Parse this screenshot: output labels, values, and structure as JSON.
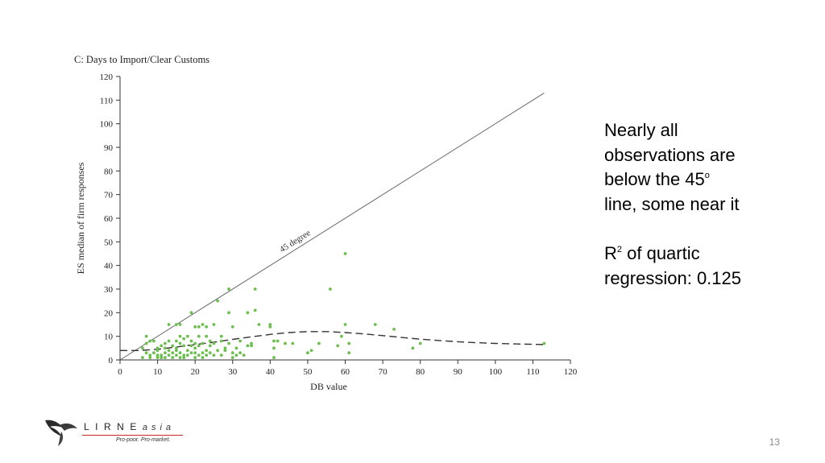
{
  "chart_data": {
    "type": "scatter",
    "title": "C: Days to Import/Clear Customs",
    "xlabel": "DB value",
    "ylabel": "ES median of firm responses",
    "xlim": [
      0,
      120
    ],
    "ylim": [
      0,
      120
    ],
    "x_ticks": [
      "0",
      "10",
      "20",
      "30",
      "40",
      "50",
      "60",
      "70",
      "80",
      "90",
      "100",
      "110",
      "120"
    ],
    "y_ticks": [
      "0",
      "10",
      "20",
      "30",
      "40",
      "50",
      "60",
      "70",
      "80",
      "90",
      "100",
      "110",
      "120"
    ],
    "grid": false,
    "point_color": "#6cbf4f",
    "series": [
      {
        "points": [
          [
            6,
            1
          ],
          [
            6,
            5
          ],
          [
            7,
            10
          ],
          [
            7,
            3
          ],
          [
            7,
            7
          ],
          [
            8,
            2
          ],
          [
            8,
            8
          ],
          [
            8,
            1
          ],
          [
            9,
            3
          ],
          [
            9,
            8
          ],
          [
            10,
            2
          ],
          [
            10,
            5
          ],
          [
            10,
            4
          ],
          [
            10,
            1
          ],
          [
            11,
            2
          ],
          [
            11,
            6
          ],
          [
            11,
            1
          ],
          [
            12,
            3
          ],
          [
            12,
            5
          ],
          [
            12,
            7
          ],
          [
            12,
            1
          ],
          [
            13,
            2
          ],
          [
            13,
            8
          ],
          [
            13,
            15
          ],
          [
            13,
            4
          ],
          [
            14,
            1
          ],
          [
            14,
            6
          ],
          [
            14,
            3
          ],
          [
            15,
            2
          ],
          [
            15,
            8
          ],
          [
            15,
            15
          ],
          [
            15,
            5
          ],
          [
            15,
            4
          ],
          [
            16,
            1
          ],
          [
            16,
            15
          ],
          [
            16,
            7
          ],
          [
            16,
            10
          ],
          [
            16,
            3
          ],
          [
            17,
            2
          ],
          [
            17,
            6
          ],
          [
            17,
            9
          ],
          [
            17,
            1
          ],
          [
            18,
            4
          ],
          [
            18,
            10
          ],
          [
            18,
            2
          ],
          [
            19,
            3
          ],
          [
            19,
            6
          ],
          [
            19,
            20
          ],
          [
            19,
            8
          ],
          [
            20,
            1
          ],
          [
            20,
            5
          ],
          [
            20,
            14
          ],
          [
            20,
            7
          ],
          [
            20,
            3
          ],
          [
            21,
            2
          ],
          [
            21,
            10
          ],
          [
            21,
            6
          ],
          [
            21,
            14
          ],
          [
            22,
            3
          ],
          [
            22,
            7
          ],
          [
            22,
            15
          ],
          [
            22,
            1
          ],
          [
            23,
            10
          ],
          [
            23,
            4
          ],
          [
            23,
            14
          ],
          [
            23,
            2
          ],
          [
            24,
            6
          ],
          [
            24,
            8
          ],
          [
            24,
            3
          ],
          [
            25,
            2
          ],
          [
            25,
            15
          ],
          [
            25,
            7
          ],
          [
            26,
            25
          ],
          [
            26,
            4
          ],
          [
            27,
            8
          ],
          [
            27,
            10
          ],
          [
            27,
            2
          ],
          [
            28,
            5
          ],
          [
            28,
            4
          ],
          [
            29,
            20
          ],
          [
            29,
            30
          ],
          [
            29,
            7
          ],
          [
            30,
            1
          ],
          [
            30,
            14
          ],
          [
            30,
            3
          ],
          [
            31,
            5
          ],
          [
            31,
            2
          ],
          [
            32,
            3
          ],
          [
            32,
            8
          ],
          [
            33,
            2
          ],
          [
            34,
            6
          ],
          [
            34,
            20
          ],
          [
            35,
            7
          ],
          [
            35,
            6
          ],
          [
            36,
            30
          ],
          [
            36,
            21
          ],
          [
            37,
            15
          ],
          [
            40,
            14
          ],
          [
            40,
            15
          ],
          [
            41,
            5
          ],
          [
            41,
            8
          ],
          [
            41,
            1
          ],
          [
            42,
            8
          ],
          [
            44,
            7
          ],
          [
            46,
            7
          ],
          [
            50,
            3
          ],
          [
            51,
            4
          ],
          [
            53,
            7
          ],
          [
            56,
            30
          ],
          [
            58,
            6
          ],
          [
            59,
            10
          ],
          [
            60,
            45
          ],
          [
            60,
            15
          ],
          [
            61,
            3
          ],
          [
            61,
            7
          ],
          [
            68,
            15
          ],
          [
            73,
            13
          ],
          [
            78,
            5
          ],
          [
            80,
            7
          ],
          [
            113,
            7
          ]
        ]
      }
    ],
    "reference_line": {
      "label": "45 degree",
      "from": [
        0,
        0
      ],
      "to": [
        113,
        113
      ]
    },
    "fit_line": {
      "style": "dashed",
      "points": [
        [
          0,
          4
        ],
        [
          5,
          4
        ],
        [
          10,
          4.5
        ],
        [
          15,
          5.5
        ],
        [
          20,
          6.5
        ],
        [
          25,
          7.5
        ],
        [
          30,
          8.7
        ],
        [
          35,
          9.8
        ],
        [
          40,
          10.8
        ],
        [
          45,
          11.6
        ],
        [
          50,
          12
        ],
        [
          55,
          12
        ],
        [
          60,
          11.6
        ],
        [
          65,
          11
        ],
        [
          70,
          10.3
        ],
        [
          75,
          9.5
        ],
        [
          80,
          8.8
        ],
        [
          85,
          8.2
        ],
        [
          90,
          7.7
        ],
        [
          95,
          7.3
        ],
        [
          100,
          7
        ],
        [
          105,
          6.8
        ],
        [
          110,
          6.6
        ],
        [
          113,
          6.5
        ]
      ]
    }
  },
  "notes": {
    "line1": "Nearly all",
    "line2": "observations are",
    "line3": "below the 45",
    "line3_sup": "o",
    "line4": "line, some near it",
    "line5_main": "R",
    "line5_sup": "2",
    "line5_rest": " of quartic",
    "line6": "regression: 0.125"
  },
  "page_number": "13",
  "logo": {
    "name": "LIRNE",
    "name_suffix": "asia",
    "tagline": "Pro-poor. Pro-market.",
    "icon": "bird-icon"
  }
}
